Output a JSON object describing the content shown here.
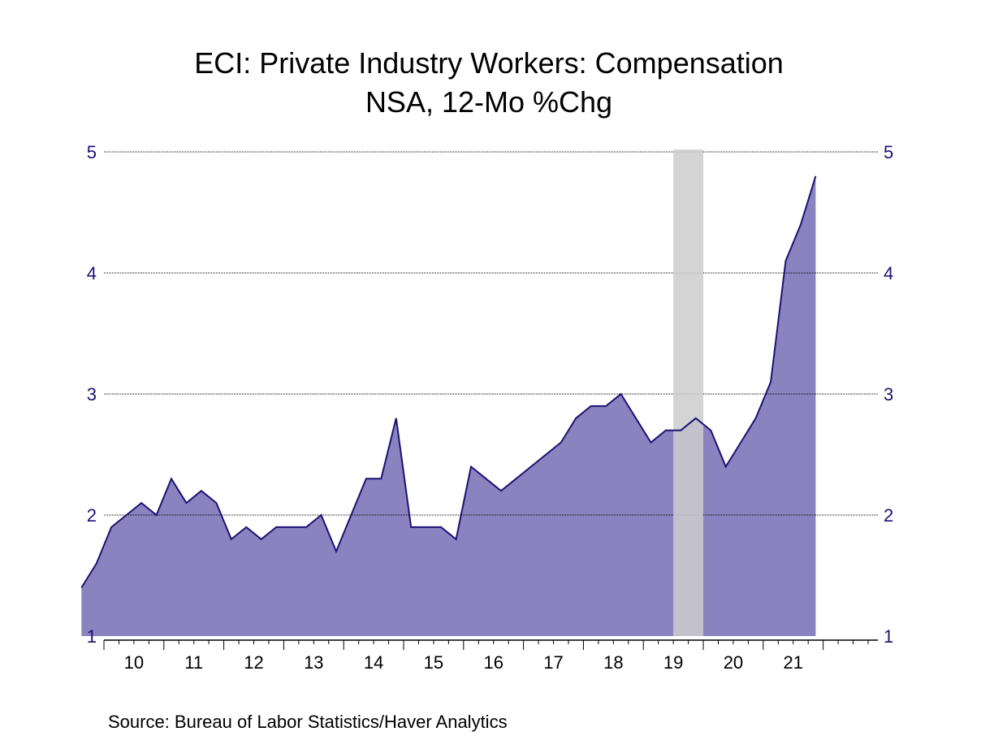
{
  "chart_data": {
    "type": "area",
    "title": "ECI: Private Industry Workers: Compensation",
    "subtitle": "NSA, 12-Mo %Chg",
    "source": "Source:  Bureau of Labor Statistics/Haver Analytics",
    "xlabel": "",
    "ylabel": "",
    "ylim": [
      1,
      5
    ],
    "y_ticks": [
      1,
      2,
      3,
      4,
      5
    ],
    "x_tick_labels": [
      "10",
      "11",
      "12",
      "13",
      "14",
      "15",
      "16",
      "17",
      "18",
      "19",
      "20",
      "21"
    ],
    "grid": true,
    "y_axis_both_sides": true,
    "recession_shading": {
      "from": "2020-Q1",
      "to": "2020-Q2"
    },
    "series": [
      {
        "x": [
          "2010-Q1",
          "2010-Q2",
          "2010-Q3",
          "2010-Q4",
          "2011-Q1",
          "2011-Q2",
          "2011-Q3",
          "2011-Q4",
          "2012-Q1",
          "2012-Q2",
          "2012-Q3",
          "2012-Q4",
          "2013-Q1",
          "2013-Q2",
          "2013-Q3",
          "2013-Q4",
          "2014-Q1",
          "2014-Q2",
          "2014-Q3",
          "2014-Q4",
          "2015-Q1",
          "2015-Q2",
          "2015-Q3",
          "2015-Q4",
          "2016-Q1",
          "2016-Q2",
          "2016-Q3",
          "2016-Q4",
          "2017-Q1",
          "2017-Q2",
          "2017-Q3",
          "2017-Q4",
          "2018-Q1",
          "2018-Q2",
          "2018-Q3",
          "2018-Q4",
          "2019-Q1",
          "2019-Q2",
          "2019-Q3",
          "2019-Q4",
          "2020-Q1",
          "2020-Q2",
          "2020-Q3",
          "2020-Q4",
          "2021-Q1",
          "2021-Q2",
          "2021-Q3",
          "2021-Q4",
          "2022-Q1",
          "2022-Q2"
        ],
        "values": [
          1.4,
          1.6,
          1.9,
          2.0,
          2.1,
          2.0,
          2.3,
          2.1,
          2.2,
          2.1,
          1.8,
          1.9,
          1.8,
          1.9,
          1.9,
          1.9,
          2.0,
          1.7,
          2.0,
          2.3,
          2.3,
          2.8,
          1.9,
          1.9,
          1.9,
          1.8,
          2.4,
          2.3,
          2.2,
          2.3,
          2.4,
          2.5,
          2.6,
          2.8,
          2.9,
          2.9,
          3.0,
          2.8,
          2.6,
          2.7,
          2.7,
          2.8,
          2.7,
          2.4,
          2.6,
          2.8,
          3.1,
          4.1,
          4.4,
          4.8
        ]
      }
    ],
    "colors": {
      "area_fill": "#8b82c0",
      "line": "#1c1273",
      "recession": "#cccccc",
      "axis_text": "#1c1273",
      "grid": "#000000"
    }
  }
}
